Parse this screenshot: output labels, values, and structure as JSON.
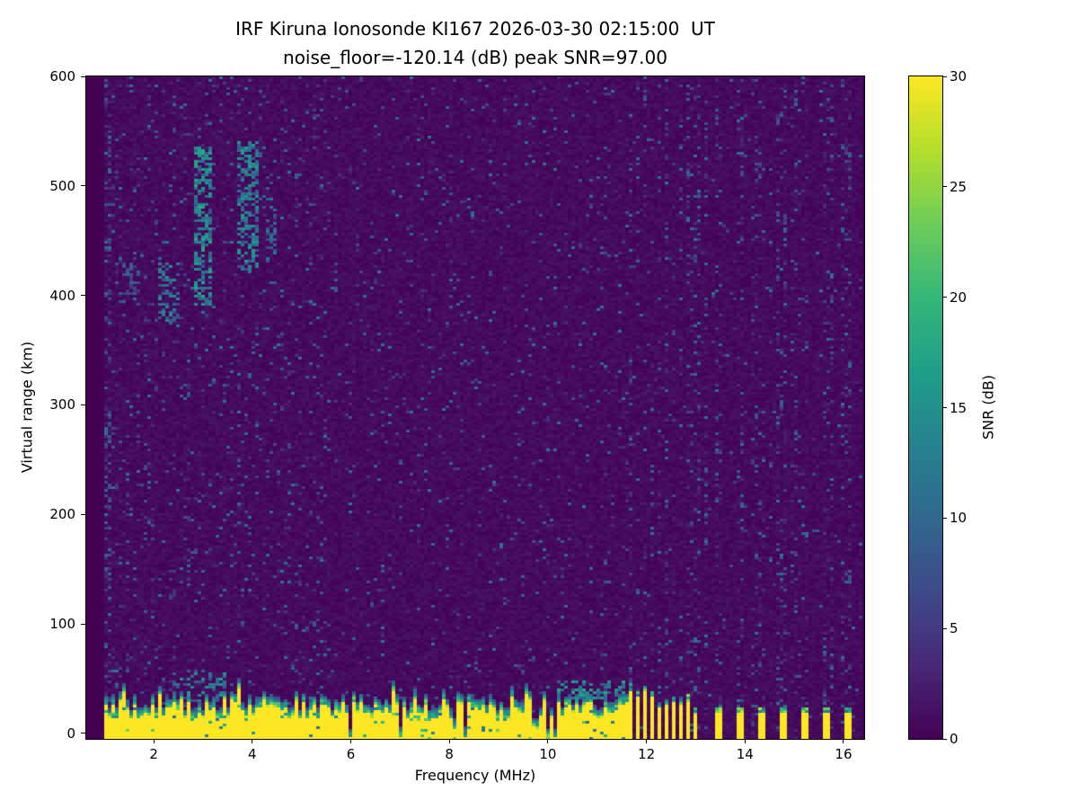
{
  "chart_data": {
    "type": "heatmap",
    "title": "IRF Kiruna Ionosonde KI167 2026-03-30 02:15:00  UT",
    "subtitle": "noise_floor=-120.14 (dB) peak SNR=97.00",
    "xlabel": "Frequency (MHz)",
    "ylabel": "Virtual range (km)",
    "colorbar_label": "SNR (dB)",
    "colormap": "viridis",
    "xlim": [
      0.63,
      16.42
    ],
    "ylim": [
      -5,
      600
    ],
    "clim": [
      0,
      30
    ],
    "x_ticks": [
      2,
      4,
      6,
      8,
      10,
      12,
      14,
      16
    ],
    "y_ticks": [
      0,
      100,
      200,
      300,
      400,
      500,
      600
    ],
    "colorbar_ticks": [
      0,
      5,
      10,
      15,
      20,
      25,
      30
    ],
    "data_extent": {
      "fmin": 0.97,
      "fmax": 16.35
    },
    "features": {
      "seed": 167,
      "noise": {
        "base_snr": 0,
        "speckle_prob": 0.05,
        "speckle_prob_lowfreq": 0.075,
        "lowfreq_cutoff": 5.5,
        "speckle_max": 12
      },
      "ground_band": {
        "fmax": 11.62,
        "top_km_mean": 30,
        "top_km_jitter": 9,
        "notch_prob": 0.05,
        "notch_top_km": 10,
        "snr": 30,
        "fuzz_km": 9
      },
      "stripe_region": {
        "fmin": 11.65,
        "fmax": 13.12,
        "period_mhz": 0.1459,
        "duty": 0.55,
        "top_km_mean": 34,
        "top_km_jitter": 12
      },
      "isolated_stripes": {
        "freqs": [
          13.45,
          13.9,
          14.32,
          14.77,
          15.2,
          15.64,
          16.08
        ],
        "width_mhz": 0.12,
        "top_km": 24
      },
      "rfi_columns": {
        "fmin": 11.65,
        "prob_on_stripe": 0.2,
        "speckle_prob": 0.16
      },
      "echo_patches": [
        {
          "f0": 2.1,
          "f1": 2.5,
          "r0": 375,
          "r1": 430,
          "snr": 12,
          "density": 0.45
        },
        {
          "f0": 2.8,
          "f1": 3.2,
          "r0": 390,
          "r1": 535,
          "snr": 14,
          "density": 0.5
        },
        {
          "f0": 3.7,
          "f1": 4.15,
          "r0": 420,
          "r1": 540,
          "snr": 13,
          "density": 0.5
        },
        {
          "f0": 4.25,
          "f1": 4.5,
          "r0": 430,
          "r1": 505,
          "snr": 10,
          "density": 0.35
        },
        {
          "f0": 1.35,
          "f1": 1.8,
          "r0": 390,
          "r1": 430,
          "snr": 8,
          "density": 0.25
        },
        {
          "f0": 2.4,
          "f1": 3.5,
          "r0": 28,
          "r1": 58,
          "snr": 13,
          "density": 0.3
        },
        {
          "f0": 10.2,
          "f1": 11.6,
          "r0": 30,
          "r1": 48,
          "snr": 14,
          "density": 0.35
        }
      ]
    }
  }
}
